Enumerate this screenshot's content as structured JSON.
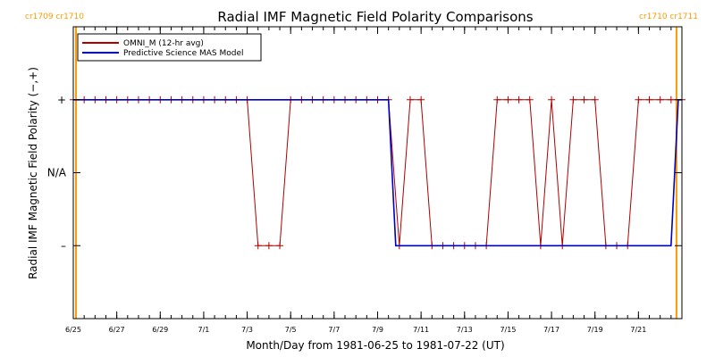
{
  "chart_data": {
    "type": "line",
    "title": "Radial IMF Magnetic Field Polarity Comparisons",
    "xlabel": "Month/Day from 1981-06-25 to 1981-07-22 (UT)",
    "ylabel": "Radial IMF Magnetic Field Polarity (−,+)",
    "xlim": [
      "1981-06-25T00:00",
      "1981-07-23T00:00"
    ],
    "ylim": [
      -2,
      2
    ],
    "x_tick_labels": [
      "6/25",
      "6/27",
      "6/29",
      "7/1",
      "7/3",
      "7/5",
      "7/7",
      "7/9",
      "7/11",
      "7/13",
      "7/15",
      "7/17",
      "7/19",
      "7/21"
    ],
    "x_tick_dates": [
      "1981-06-25",
      "1981-06-27",
      "1981-06-29",
      "1981-07-01",
      "1981-07-03",
      "1981-07-05",
      "1981-07-07",
      "1981-07-09",
      "1981-07-11",
      "1981-07-13",
      "1981-07-15",
      "1981-07-17",
      "1981-07-19",
      "1981-07-21"
    ],
    "y_ticks": [
      {
        "value": 1,
        "label": "+"
      },
      {
        "value": 0,
        "label": "N/A"
      },
      {
        "value": -1,
        "label": "–"
      }
    ],
    "legend_position": "top-left",
    "grid": false,
    "carrington_markers": [
      {
        "date": "1981-06-25T03:00",
        "label": "cr1709 cr1710",
        "side": "left"
      },
      {
        "date": "1981-07-22T18:00",
        "label": "cr1710 cr1711",
        "side": "right"
      }
    ],
    "series": [
      {
        "name": "OMNI_M (12-hr avg)",
        "color": "#b00000",
        "marker": "plus",
        "points": [
          [
            "1981-06-25T00:00",
            1
          ],
          [
            "1981-06-25T12:00",
            1
          ],
          [
            "1981-06-26T00:00",
            1
          ],
          [
            "1981-06-26T12:00",
            1
          ],
          [
            "1981-06-27T00:00",
            1
          ],
          [
            "1981-06-27T12:00",
            1
          ],
          [
            "1981-06-28T00:00",
            1
          ],
          [
            "1981-06-28T12:00",
            1
          ],
          [
            "1981-06-29T00:00",
            1
          ],
          [
            "1981-06-29T12:00",
            1
          ],
          [
            "1981-06-30T00:00",
            1
          ],
          [
            "1981-06-30T12:00",
            1
          ],
          [
            "1981-07-01T00:00",
            1
          ],
          [
            "1981-07-01T12:00",
            1
          ],
          [
            "1981-07-02T00:00",
            1
          ],
          [
            "1981-07-02T12:00",
            1
          ],
          [
            "1981-07-03T00:00",
            1
          ],
          [
            "1981-07-03T12:00",
            -1
          ],
          [
            "1981-07-04T00:00",
            -1
          ],
          [
            "1981-07-04T12:00",
            -1
          ],
          [
            "1981-07-05T00:00",
            1
          ],
          [
            "1981-07-05T12:00",
            1
          ],
          [
            "1981-07-06T00:00",
            1
          ],
          [
            "1981-07-06T12:00",
            1
          ],
          [
            "1981-07-07T00:00",
            1
          ],
          [
            "1981-07-07T12:00",
            1
          ],
          [
            "1981-07-08T00:00",
            1
          ],
          [
            "1981-07-08T12:00",
            1
          ],
          [
            "1981-07-09T00:00",
            1
          ],
          [
            "1981-07-09T12:00",
            1
          ],
          [
            "1981-07-10T00:00",
            -1
          ],
          [
            "1981-07-10T12:00",
            1
          ],
          [
            "1981-07-11T00:00",
            1
          ],
          [
            "1981-07-11T12:00",
            -1
          ],
          [
            "1981-07-12T00:00",
            -1
          ],
          [
            "1981-07-12T12:00",
            -1
          ],
          [
            "1981-07-13T00:00",
            -1
          ],
          [
            "1981-07-13T12:00",
            -1
          ],
          [
            "1981-07-14T00:00",
            -1
          ],
          [
            "1981-07-14T12:00",
            1
          ],
          [
            "1981-07-15T00:00",
            1
          ],
          [
            "1981-07-15T12:00",
            1
          ],
          [
            "1981-07-16T00:00",
            1
          ],
          [
            "1981-07-16T12:00",
            -1
          ],
          [
            "1981-07-17T00:00",
            1
          ],
          [
            "1981-07-17T12:00",
            -1
          ],
          [
            "1981-07-18T00:00",
            1
          ],
          [
            "1981-07-18T12:00",
            1
          ],
          [
            "1981-07-19T00:00",
            1
          ],
          [
            "1981-07-19T12:00",
            -1
          ],
          [
            "1981-07-20T00:00",
            -1
          ],
          [
            "1981-07-20T12:00",
            -1
          ],
          [
            "1981-07-21T00:00",
            1
          ],
          [
            "1981-07-21T12:00",
            1
          ],
          [
            "1981-07-22T00:00",
            1
          ],
          [
            "1981-07-22T12:00",
            1
          ],
          [
            "1981-07-23T00:00",
            1
          ]
        ]
      },
      {
        "name": "Predictive Science MAS Model",
        "color": "#0000c0",
        "marker": "none",
        "points": [
          [
            "1981-06-25T00:00",
            1
          ],
          [
            "1981-07-09T12:00",
            1
          ],
          [
            "1981-07-09T16:00",
            0
          ],
          [
            "1981-07-09T20:00",
            -1
          ],
          [
            "1981-07-22T12:00",
            -1
          ],
          [
            "1981-07-22T16:00",
            0
          ],
          [
            "1981-07-22T20:00",
            1
          ],
          [
            "1981-07-23T00:00",
            1
          ]
        ]
      }
    ]
  }
}
